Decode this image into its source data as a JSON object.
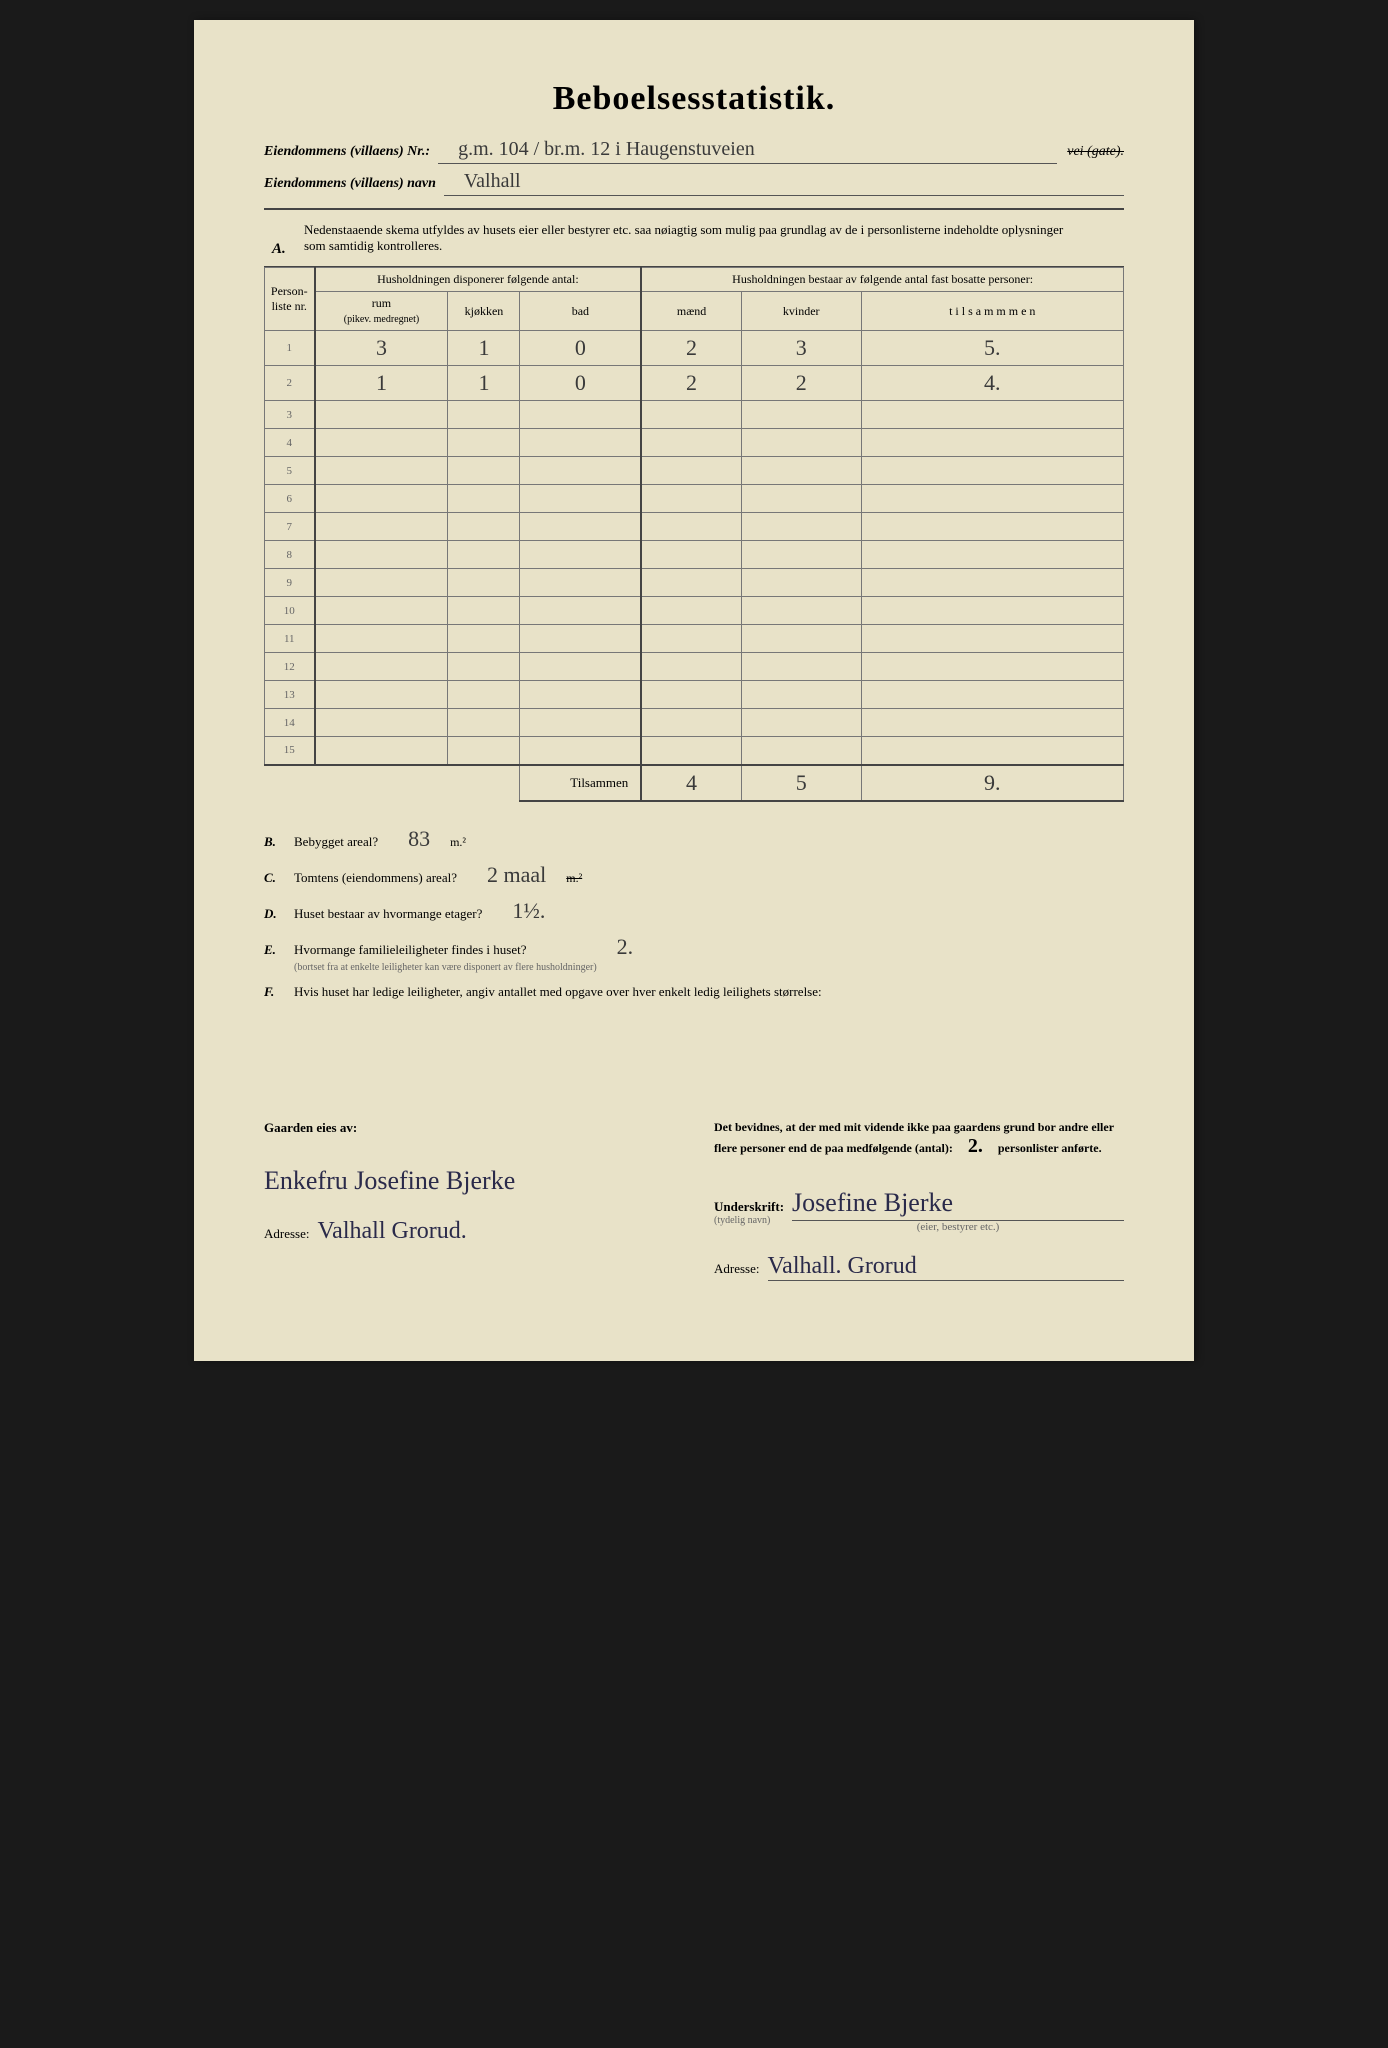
{
  "title": "Beboelsesstatistik.",
  "header": {
    "line1_label": "Eiendommens (villaens) Nr.:",
    "line1_value": "g.m. 104 / br.m. 12 i Haugenstuveien",
    "line1_strike": "vei (gate).",
    "line2_label": "Eiendommens (villaens) navn",
    "line2_value": "Valhall"
  },
  "section_a": {
    "marker": "A.",
    "text": "Nedenstaaende skema utfyldes av husets eier eller bestyrer etc. saa nøiagtig som mulig paa grundlag av de i personlisterne indeholdte oplysninger som samtidig kontrolleres."
  },
  "table": {
    "head": {
      "col_person": "Person-liste nr.",
      "group1": "Husholdningen disponerer følgende antal:",
      "group2": "Husholdningen bestaar av følgende antal fast bosatte personer:",
      "rum": "rum",
      "rum_sub": "(pikev. medregnet)",
      "kjokken": "kjøkken",
      "bad": "bad",
      "maend": "mænd",
      "kvinder": "kvinder",
      "tilsammen": "t i l s a m m m e n"
    },
    "rows": [
      {
        "nr": "1",
        "rum": "3",
        "kjokken": "1",
        "bad": "0",
        "maend": "2",
        "kvinder": "3",
        "tilsammen": "5."
      },
      {
        "nr": "2",
        "rum": "1",
        "kjokken": "1",
        "bad": "0",
        "maend": "2",
        "kvinder": "2",
        "tilsammen": "4."
      },
      {
        "nr": "3"
      },
      {
        "nr": "4"
      },
      {
        "nr": "5"
      },
      {
        "nr": "6"
      },
      {
        "nr": "7"
      },
      {
        "nr": "8"
      },
      {
        "nr": "9"
      },
      {
        "nr": "10"
      },
      {
        "nr": "11"
      },
      {
        "nr": "12"
      },
      {
        "nr": "13"
      },
      {
        "nr": "14"
      },
      {
        "nr": "15"
      }
    ],
    "total_label": "Tilsammen",
    "total": {
      "maend": "4",
      "kvinder": "5",
      "tilsammen": "9."
    }
  },
  "facts": {
    "B": {
      "marker": "B.",
      "q": "Bebygget areal?",
      "ans": "83",
      "unit": "m.²"
    },
    "C": {
      "marker": "C.",
      "q": "Tomtens (eiendommens) areal?",
      "ans": "2 maal",
      "unit": "m.²"
    },
    "D": {
      "marker": "D.",
      "q": "Huset bestaar av hvormange etager?",
      "ans": "1½."
    },
    "E": {
      "marker": "E.",
      "q": "Hvormange familieleiligheter findes i huset?",
      "sub": "(bortset fra at enkelte leiligheter kan være disponert av flere husholdninger)",
      "ans": "2."
    },
    "F": {
      "marker": "F.",
      "q": "Hvis huset har ledige leiligheter, angiv antallet med opgave over hver enkelt ledig leilighets størrelse:"
    }
  },
  "bottom": {
    "left": {
      "owner_label": "Gaarden eies av:",
      "owner_sig": "Enkefru Josefine Bjerke",
      "addr_label": "Adresse:",
      "addr_value": "Valhall Grorud."
    },
    "right": {
      "declare": "Det bevidnes, at der med mit vidende ikke paa gaardens grund bor andre eller flere personer end de paa medfølgende (antal):",
      "count": "2.",
      "declare2": "personlister anførte.",
      "under_label": "Underskrift:",
      "under_sub": "(tydelig navn)",
      "under_sig": "Josefine Bjerke",
      "under_role": "(eier, bestyrer etc.)",
      "addr_label": "Adresse:",
      "addr_value": "Valhall. Grorud"
    }
  }
}
